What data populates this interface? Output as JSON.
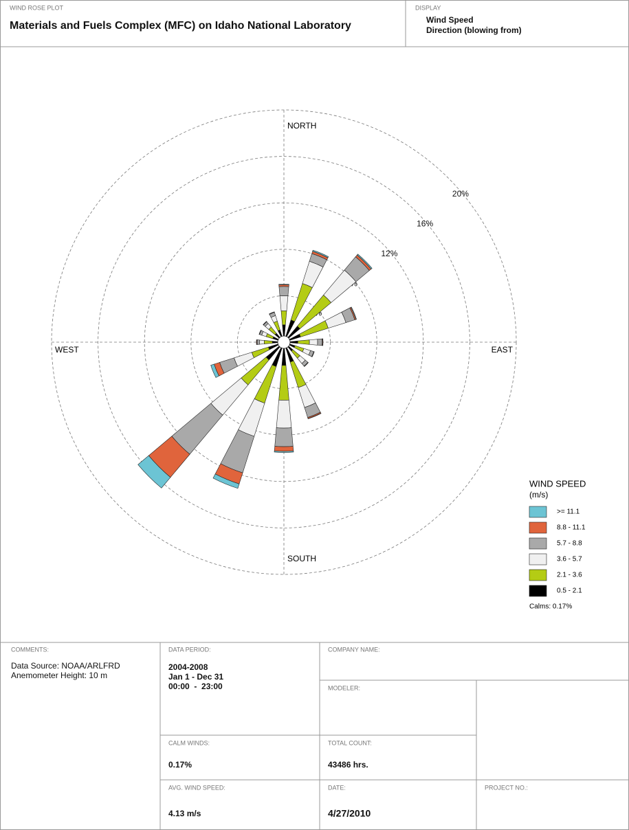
{
  "header": {
    "plot_label": "WIND ROSE PLOT",
    "title": "Materials and Fuels Complex (MFC) on Idaho National Laboratory",
    "display_label": "DISPLAY",
    "display_lines": [
      "Wind Speed",
      "Direction (blowing from)"
    ]
  },
  "chart_data": {
    "type": "windrose",
    "direction_labels": {
      "north": "NORTH",
      "east": "EAST",
      "south": "SOUTH",
      "west": "WEST"
    },
    "rlim": [
      0,
      20
    ],
    "rticks": [
      {
        "value": 4,
        "label": "4%"
      },
      {
        "value": 8,
        "label": "8%"
      },
      {
        "value": 12,
        "label": "12%"
      },
      {
        "value": 16,
        "label": "16%"
      },
      {
        "value": 20,
        "label": "20%"
      }
    ],
    "legend_title": [
      "WIND SPEED",
      "(m/s)"
    ],
    "calms_label": "Calms: 0.17%",
    "series": [
      {
        "name": "0.5 - 2.1",
        "color": "#000000",
        "values": [
          1.5,
          2.0,
          1.8,
          1.5,
          1.2,
          1.0,
          1.0,
          1.8,
          2.0,
          2.2,
          2.0,
          1.4,
          1.0,
          1.0,
          1.0,
          1.1
        ]
      },
      {
        "name": "2.1 - 3.6",
        "color": "#b4cc14",
        "values": [
          1.2,
          3.3,
          3.5,
          2.5,
          1.0,
          0.8,
          0.8,
          2.3,
          3.0,
          3.3,
          2.8,
          1.5,
          0.7,
          0.6,
          0.7,
          0.8
        ]
      },
      {
        "name": "3.6 - 5.7",
        "color": "#f0f0f0",
        "values": [
          1.3,
          2.0,
          2.8,
          1.6,
          0.7,
          0.6,
          0.6,
          1.8,
          2.4,
          3.0,
          3.4,
          1.6,
          0.4,
          0.4,
          0.4,
          0.5
        ]
      },
      {
        "name": "5.7 - 8.8",
        "color": "#a9a9a9",
        "values": [
          0.8,
          0.7,
          1.5,
          0.8,
          0.4,
          0.3,
          0.3,
          0.9,
          1.6,
          3.3,
          4.4,
          1.3,
          0.2,
          0.2,
          0.2,
          0.3
        ]
      },
      {
        "name": "8.8 - 11.1",
        "color": "#e0643c",
        "values": [
          0.15,
          0.2,
          0.2,
          0.1,
          0.05,
          0.03,
          0.03,
          0.1,
          0.4,
          1.0,
          2.6,
          0.5,
          0.05,
          0.03,
          0.03,
          0.03
        ]
      },
      {
        "name": ">= 11.1",
        "color": "#6cc4d4",
        "values": [
          0.05,
          0.1,
          0.1,
          0.05,
          0.02,
          0.01,
          0.01,
          0.02,
          0.1,
          0.4,
          1.2,
          0.3,
          0.02,
          0.01,
          0.01,
          0.01
        ]
      }
    ]
  },
  "form": {
    "comments": {
      "label": "COMMENTS:",
      "lines": [
        "Data Source: NOAA/ARLFRD",
        "Anemometer Height: 10 m"
      ]
    },
    "data_period": {
      "label": "DATA PERIOD:",
      "lines": [
        "2004-2008",
        "Jan 1 - Dec 31",
        "00:00  -  23:00"
      ]
    },
    "company_name": {
      "label": "COMPANY NAME:"
    },
    "modeler": {
      "label": "MODELER:"
    },
    "calm_winds": {
      "label": "CALM WINDS:",
      "value": "0.17%"
    },
    "total_count": {
      "label": "TOTAL COUNT:",
      "value": "43486 hrs."
    },
    "avg_wind_speed": {
      "label": "AVG. WIND SPEED:",
      "value": "4.13 m/s"
    },
    "date": {
      "label": "DATE:",
      "value": "4/27/2010"
    },
    "project_no": {
      "label": "PROJECT NO.:"
    }
  }
}
